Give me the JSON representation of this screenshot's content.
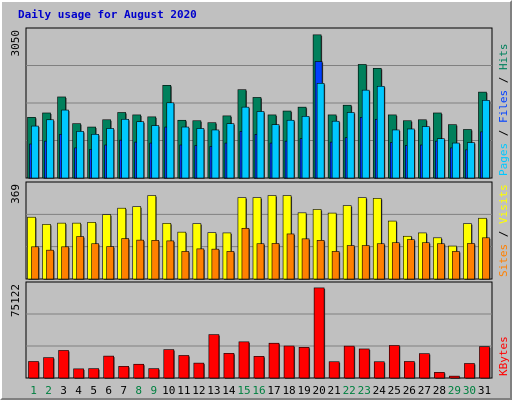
{
  "colors": {
    "title": "#0000cc",
    "panel_bg": "#c0c0c0",
    "hits": "#00805c",
    "files": "#0040ff",
    "pages": "#00c8ff",
    "visits": "#ffff00",
    "sites": "#ff8000",
    "kbytes": "#ff0000",
    "weekday_label": "#000000",
    "weekend_label": "#008040",
    "legend_sep": "#000000"
  },
  "chart_data": [
    {
      "type": "bar",
      "title": "Daily usage for August 2020",
      "ymax_label": "3050",
      "ylim": [
        0,
        3050
      ],
      "categories": [
        "1",
        "2",
        "3",
        "4",
        "5",
        "6",
        "7",
        "8",
        "9",
        "10",
        "11",
        "12",
        "13",
        "14",
        "15",
        "16",
        "17",
        "18",
        "19",
        "20",
        "21",
        "22",
        "23",
        "24",
        "25",
        "26",
        "27",
        "28",
        "29",
        "30",
        "31"
      ],
      "weekend_days": [
        "1",
        "2",
        "8",
        "9",
        "15",
        "16",
        "22",
        "23",
        "29",
        "30"
      ],
      "legend": [
        "Pages",
        "Files",
        "Hits"
      ],
      "series": [
        {
          "name": "Hits",
          "values": [
            1250,
            1340,
            1670,
            1120,
            1050,
            1200,
            1350,
            1300,
            1260,
            1910,
            1190,
            1180,
            1140,
            1280,
            1820,
            1660,
            1300,
            1380,
            1460,
            2950,
            1300,
            1500,
            2340,
            2260,
            1300,
            1180,
            1200,
            1340,
            1100,
            1000,
            1770
          ]
        },
        {
          "name": "Files",
          "values": [
            700,
            760,
            900,
            620,
            590,
            680,
            780,
            740,
            720,
            1050,
            680,
            670,
            650,
            720,
            960,
            900,
            720,
            760,
            810,
            2400,
            740,
            830,
            1250,
            1210,
            730,
            670,
            680,
            760,
            620,
            580,
            950
          ]
        },
        {
          "name": "Pages",
          "values": [
            1070,
            1200,
            1400,
            960,
            900,
            1020,
            1210,
            1160,
            1080,
            1550,
            1050,
            1020,
            990,
            1120,
            1460,
            1370,
            1100,
            1190,
            1270,
            1950,
            1170,
            1350,
            1810,
            1890,
            990,
            1010,
            1060,
            810,
            720,
            730,
            1600
          ]
        }
      ]
    },
    {
      "type": "bar",
      "ymax_label": "369",
      "ylim": [
        0,
        369
      ],
      "legend": [
        "Sites",
        "Visits"
      ],
      "series": [
        {
          "name": "Visits",
          "values": [
            240,
            212,
            217,
            217,
            220,
            250,
            275,
            281,
            324,
            216,
            182,
            215,
            180,
            179,
            316,
            316,
            324,
            324,
            257,
            270,
            256,
            285,
            316,
            313,
            225,
            166,
            179,
            160,
            128,
            215,
            236
          ]
        },
        {
          "name": "Sites",
          "values": [
            125,
            112,
            125,
            165,
            137,
            126,
            157,
            151,
            150,
            148,
            107,
            117,
            116,
            107,
            197,
            137,
            138,
            175,
            156,
            150,
            107,
            130,
            130,
            137,
            141,
            153,
            141,
            137,
            107,
            138,
            160
          ]
        }
      ]
    },
    {
      "type": "bar",
      "ymax_label": "75122",
      "ylim": [
        0,
        75122
      ],
      "legend": [
        "KBytes"
      ],
      "series": [
        {
          "name": "KBytes",
          "values": [
            13200,
            16300,
            22000,
            7300,
            7500,
            17500,
            9300,
            11000,
            7500,
            22700,
            18000,
            11900,
            34700,
            19700,
            28900,
            17300,
            27800,
            25600,
            24500,
            72000,
            13000,
            25500,
            23200,
            13000,
            26000,
            13200,
            19500,
            4500,
            1500,
            11600,
            25000
          ]
        }
      ]
    }
  ]
}
